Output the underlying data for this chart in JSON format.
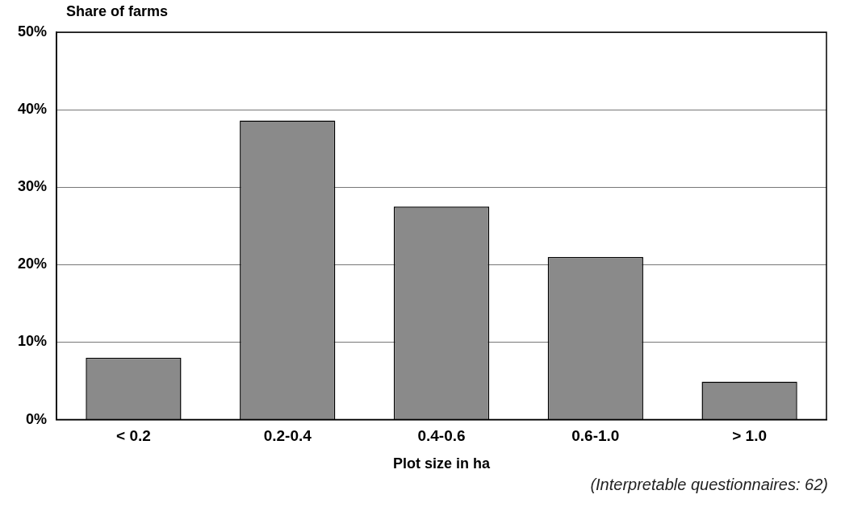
{
  "chart_data": {
    "type": "bar",
    "ylabel": "Share of farms",
    "xlabel": "Plot size in ha",
    "categories": [
      "< 0.2",
      "0.2-0.4",
      "0.4-0.6",
      "0.6-1.0",
      "> 1.0"
    ],
    "values": [
      8,
      38.6,
      27.5,
      21,
      4.9
    ],
    "color": "#8a8a8a",
    "ylim": [
      0,
      50
    ],
    "yticks": [
      {
        "value": 0,
        "label": "0%"
      },
      {
        "value": 10,
        "label": "10%"
      },
      {
        "value": 20,
        "label": "20%"
      },
      {
        "value": 30,
        "label": "30%"
      },
      {
        "value": 40,
        "label": "40%"
      },
      {
        "value": 50,
        "label": "50%"
      }
    ],
    "grid": "y",
    "legend": false,
    "annotations": [
      "(Interpretable questionnaires: 62)"
    ]
  }
}
